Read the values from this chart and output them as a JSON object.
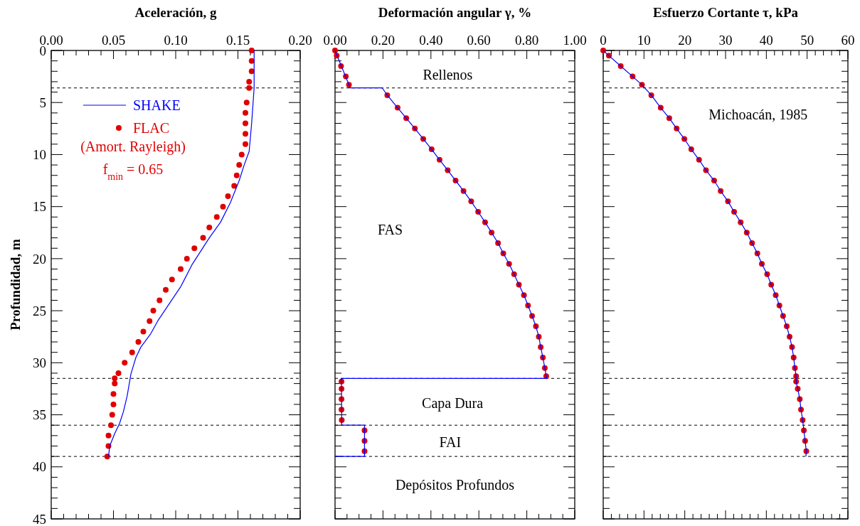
{
  "chart_data": [
    {
      "type": "line",
      "xlabel": "Aceleración, g",
      "ylabel": "Profundidad, m",
      "xlim": [
        0,
        0.2
      ],
      "ylim": [
        45,
        0
      ],
      "legend": "top left",
      "xticks": [
        {
          "value": 0,
          "label": "0.00"
        },
        {
          "value": 0.01,
          "label": null
        },
        {
          "value": 0.02,
          "label": null
        },
        {
          "value": 0.03,
          "label": null
        },
        {
          "value": 0.04,
          "label": null
        },
        {
          "value": 0.05,
          "label": "0.05"
        },
        {
          "value": 0.06,
          "label": null
        },
        {
          "value": 0.07,
          "label": null
        },
        {
          "value": 0.08,
          "label": null
        },
        {
          "value": 0.09,
          "label": null
        },
        {
          "value": 0.1,
          "label": "0.10"
        },
        {
          "value": 0.11,
          "label": null
        },
        {
          "value": 0.12,
          "label": null
        },
        {
          "value": 0.13,
          "label": null
        },
        {
          "value": 0.14,
          "label": null
        },
        {
          "value": 0.15,
          "label": "0.15"
        },
        {
          "value": 0.16,
          "label": null
        },
        {
          "value": 0.17,
          "label": null
        },
        {
          "value": 0.18,
          "label": null
        },
        {
          "value": 0.19,
          "label": null
        },
        {
          "value": 0.2,
          "label": "0.20"
        }
      ],
      "yticks": [
        0,
        {
          "value": 1,
          "label": null
        },
        {
          "value": 2,
          "label": null
        },
        {
          "value": 3,
          "label": null
        },
        {
          "value": 4,
          "label": null
        },
        5,
        {
          "value": 6,
          "label": null
        },
        {
          "value": 7,
          "label": null
        },
        {
          "value": 8,
          "label": null
        },
        {
          "value": 9,
          "label": null
        },
        10,
        {
          "value": 11,
          "label": null
        },
        {
          "value": 12,
          "label": null
        },
        {
          "value": 13,
          "label": null
        },
        {
          "value": 14,
          "label": null
        },
        15,
        {
          "value": 16,
          "label": null
        },
        {
          "value": 17,
          "label": null
        },
        {
          "value": 18,
          "label": null
        },
        {
          "value": 19,
          "label": null
        },
        20,
        {
          "value": 21,
          "label": null
        },
        {
          "value": 22,
          "label": null
        },
        {
          "value": 23,
          "label": null
        },
        {
          "value": 24,
          "label": null
        },
        25,
        {
          "value": 26,
          "label": null
        },
        {
          "value": 27,
          "label": null
        },
        {
          "value": 28,
          "label": null
        },
        {
          "value": 29,
          "label": null
        },
        30,
        {
          "value": 31,
          "label": null
        },
        {
          "value": 32,
          "label": null
        },
        {
          "value": 33,
          "label": null
        },
        {
          "value": 34,
          "label": null
        },
        35,
        {
          "value": 36,
          "label": null
        },
        {
          "value": 37,
          "label": null
        },
        {
          "value": 38,
          "label": null
        },
        {
          "value": 39,
          "label": null
        },
        40,
        {
          "value": 41,
          "label": null
        },
        {
          "value": 42,
          "label": null
        },
        {
          "value": 43,
          "label": null
        },
        {
          "value": 44,
          "label": null
        },
        45
      ],
      "ref_lines": [
        {
          "axis": "y",
          "value": 3.6,
          "color": "#000000",
          "line_style": "dashed"
        },
        {
          "axis": "y",
          "value": 31.5,
          "color": "#000000",
          "line_style": "dashed"
        },
        {
          "axis": "y",
          "value": 36,
          "color": "#000000",
          "line_style": "dashed"
        },
        {
          "axis": "y",
          "value": 39,
          "color": "#000000",
          "line_style": "dashed"
        }
      ],
      "annotations": [
        "(Amort. Rayleigh)",
        "f$_{min}$ = 0.65"
      ],
      "series": [
        {
          "name": "SHAKE",
          "type": "line",
          "color": "#0000ff",
          "x": [
            0.163,
            0.163,
            0.161,
            0.159,
            0.155,
            0.151,
            0.144,
            0.136,
            0.127,
            0.113,
            0.104,
            0.095,
            0.086,
            0.08,
            0.072,
            0.068,
            0.064,
            0.061,
            0.058,
            0.055,
            0.051,
            0.047,
            0.046
          ],
          "values": [
            0,
            3.6,
            7.0,
            9.7,
            11.0,
            12.5,
            14.6,
            16.5,
            18.0,
            20.6,
            22.7,
            24.3,
            25.9,
            27.2,
            28.5,
            29.5,
            31.1,
            33.2,
            34.7,
            35.8,
            36.8,
            38.0,
            39.0
          ]
        },
        {
          "name": "FLAC",
          "type": "scatter",
          "marker": "circle",
          "color": "#e00000",
          "x": [
            0.161,
            0.161,
            0.161,
            0.159,
            0.159,
            0.157,
            0.156,
            0.156,
            0.156,
            0.156,
            0.153,
            0.151,
            0.149,
            0.147,
            0.142,
            0.138,
            0.133,
            0.127,
            0.122,
            0.115,
            0.109,
            0.104,
            0.097,
            0.092,
            0.087,
            0.082,
            0.079,
            0.074,
            0.07,
            0.065,
            0.059,
            0.054,
            0.051,
            0.051,
            0.05,
            0.05,
            0.049,
            0.048,
            0.046,
            0.046,
            0.045
          ],
          "values": [
            0,
            1,
            2,
            3,
            3.6,
            5,
            6,
            7,
            8,
            9,
            10,
            11,
            12,
            13,
            14,
            15,
            16,
            17,
            18,
            19,
            20,
            21,
            22,
            23,
            24,
            25,
            26,
            27,
            28,
            29,
            30,
            31,
            31.5,
            32,
            33,
            34,
            35,
            36,
            37,
            38,
            39
          ]
        }
      ]
    },
    {
      "type": "line",
      "xlabel": "Deformación angular γ, %",
      "xlim": [
        0,
        1
      ],
      "ylim": [
        45,
        0
      ],
      "tick_labels": "x",
      "xticks": [
        {
          "value": 0,
          "label": "0.00"
        },
        {
          "value": 0.05,
          "label": null
        },
        {
          "value": 0.1,
          "label": null
        },
        {
          "value": 0.15,
          "label": null
        },
        {
          "value": 0.2,
          "label": "0.20"
        },
        {
          "value": 0.25,
          "label": null
        },
        {
          "value": 0.3,
          "label": null
        },
        {
          "value": 0.35,
          "label": null
        },
        {
          "value": 0.4,
          "label": "0.40"
        },
        {
          "value": 0.45,
          "label": null
        },
        {
          "value": 0.5,
          "label": null
        },
        {
          "value": 0.55,
          "label": null
        },
        {
          "value": 0.6,
          "label": "0.60"
        },
        {
          "value": 0.65,
          "label": null
        },
        {
          "value": 0.7,
          "label": null
        },
        {
          "value": 0.75,
          "label": null
        },
        {
          "value": 0.8,
          "label": "0.80"
        },
        {
          "value": 0.85,
          "label": null
        },
        {
          "value": 0.9,
          "label": null
        },
        {
          "value": 0.95,
          "label": null
        },
        {
          "value": 1,
          "label": "1.00"
        }
      ],
      "yticks": [
        0,
        {
          "value": 1,
          "label": null
        },
        {
          "value": 2,
          "label": null
        },
        {
          "value": 3,
          "label": null
        },
        {
          "value": 4,
          "label": null
        },
        5,
        {
          "value": 6,
          "label": null
        },
        {
          "value": 7,
          "label": null
        },
        {
          "value": 8,
          "label": null
        },
        {
          "value": 9,
          "label": null
        },
        10,
        {
          "value": 11,
          "label": null
        },
        {
          "value": 12,
          "label": null
        },
        {
          "value": 13,
          "label": null
        },
        {
          "value": 14,
          "label": null
        },
        15,
        {
          "value": 16,
          "label": null
        },
        {
          "value": 17,
          "label": null
        },
        {
          "value": 18,
          "label": null
        },
        {
          "value": 19,
          "label": null
        },
        20,
        {
          "value": 21,
          "label": null
        },
        {
          "value": 22,
          "label": null
        },
        {
          "value": 23,
          "label": null
        },
        {
          "value": 24,
          "label": null
        },
        25,
        {
          "value": 26,
          "label": null
        },
        {
          "value": 27,
          "label": null
        },
        {
          "value": 28,
          "label": null
        },
        {
          "value": 29,
          "label": null
        },
        30,
        {
          "value": 31,
          "label": null
        },
        {
          "value": 32,
          "label": null
        },
        {
          "value": 33,
          "label": null
        },
        {
          "value": 34,
          "label": null
        },
        35,
        {
          "value": 36,
          "label": null
        },
        {
          "value": 37,
          "label": null
        },
        {
          "value": 38,
          "label": null
        },
        {
          "value": 39,
          "label": null
        },
        40,
        {
          "value": 41,
          "label": null
        },
        {
          "value": 42,
          "label": null
        },
        {
          "value": 43,
          "label": null
        },
        {
          "value": 44,
          "label": null
        },
        45
      ],
      "ref_lines": [
        {
          "axis": "y",
          "value": 3.6,
          "color": "#000000",
          "line_style": "dashed"
        },
        {
          "axis": "y",
          "value": 31.5,
          "color": "#000000",
          "line_style": "dashed"
        },
        {
          "axis": "y",
          "value": 36,
          "color": "#000000",
          "line_style": "dashed"
        },
        {
          "axis": "y",
          "value": 39,
          "color": "#000000",
          "line_style": "dashed"
        }
      ],
      "annotations": [
        "Rellenos",
        "FAS",
        "Capa Dura",
        "FAI",
        "Depósitos Profundos"
      ],
      "series": [
        {
          "type": "line",
          "color": "#0000ff",
          "x": [
            0,
            0.058,
            0.062,
            0.197,
            0.218,
            0.261,
            0.297,
            0.333,
            0.368,
            0.403,
            0.436,
            0.47,
            0.503,
            0.536,
            0.568,
            0.597,
            0.626,
            0.653,
            0.68,
            0.702,
            0.726,
            0.747,
            0.767,
            0.788,
            0.805,
            0.822,
            0.838,
            0.85,
            0.858,
            0.867,
            0.875,
            0.881,
            0.883,
            0.026,
            0.027,
            0.028,
            0.123,
            0.123,
            0
          ],
          "values": [
            0,
            3.3,
            3.6,
            3.6,
            4.3,
            5.5,
            6.5,
            7.5,
            8.5,
            9.5,
            10.5,
            11.5,
            12.5,
            13.5,
            14.5,
            15.5,
            16.5,
            17.5,
            18.5,
            19.5,
            20.5,
            21.5,
            22.5,
            23.5,
            24.5,
            25.5,
            26.5,
            27.5,
            28.5,
            29.5,
            30.5,
            31.3,
            31.5,
            31.5,
            32,
            36,
            36,
            39,
            39
          ]
        },
        {
          "type": "scatter",
          "marker": "circle",
          "color": "#e00000",
          "x": [
            0,
            0.007,
            0.025,
            0.045,
            0.058,
            0.218,
            0.261,
            0.297,
            0.333,
            0.368,
            0.403,
            0.436,
            0.47,
            0.503,
            0.536,
            0.568,
            0.597,
            0.626,
            0.653,
            0.68,
            0.702,
            0.726,
            0.747,
            0.767,
            0.788,
            0.805,
            0.822,
            0.838,
            0.85,
            0.858,
            0.867,
            0.875,
            0.881,
            0.027,
            0.027,
            0.027,
            0.027,
            0.028,
            0.123,
            0.123,
            0.123
          ],
          "values": [
            0,
            0.5,
            1.5,
            2.5,
            3.3,
            4.3,
            5.5,
            6.5,
            7.5,
            8.5,
            9.5,
            10.5,
            11.5,
            12.5,
            13.5,
            14.5,
            15.5,
            16.5,
            17.5,
            18.5,
            19.5,
            20.5,
            21.5,
            22.5,
            23.5,
            24.5,
            25.5,
            26.5,
            27.5,
            28.5,
            29.5,
            30.5,
            31.3,
            31.8,
            32.5,
            33.5,
            34.5,
            35.5,
            36.5,
            37.5,
            38.5
          ]
        }
      ]
    },
    {
      "type": "line",
      "xlabel": "Esfuerzo Cortante τ, kPa",
      "xlim": [
        0,
        60
      ],
      "ylim": [
        45,
        0
      ],
      "tick_labels": "x",
      "xticks": [
        0,
        {
          "value": 2,
          "label": null
        },
        {
          "value": 4,
          "label": null
        },
        {
          "value": 6,
          "label": null
        },
        {
          "value": 8,
          "label": null
        },
        10,
        {
          "value": 12,
          "label": null
        },
        {
          "value": 14,
          "label": null
        },
        {
          "value": 16,
          "label": null
        },
        {
          "value": 18,
          "label": null
        },
        20,
        {
          "value": 22,
          "label": null
        },
        {
          "value": 24,
          "label": null
        },
        {
          "value": 26,
          "label": null
        },
        {
          "value": 28,
          "label": null
        },
        30,
        {
          "value": 32,
          "label": null
        },
        {
          "value": 34,
          "label": null
        },
        {
          "value": 36,
          "label": null
        },
        {
          "value": 38,
          "label": null
        },
        40,
        {
          "value": 42,
          "label": null
        },
        {
          "value": 44,
          "label": null
        },
        {
          "value": 46,
          "label": null
        },
        {
          "value": 48,
          "label": null
        },
        50,
        {
          "value": 52,
          "label": null
        },
        {
          "value": 54,
          "label": null
        },
        {
          "value": 56,
          "label": null
        },
        {
          "value": 58,
          "label": null
        },
        60
      ],
      "yticks": [
        0,
        {
          "value": 1,
          "label": null
        },
        {
          "value": 2,
          "label": null
        },
        {
          "value": 3,
          "label": null
        },
        {
          "value": 4,
          "label": null
        },
        5,
        {
          "value": 6,
          "label": null
        },
        {
          "value": 7,
          "label": null
        },
        {
          "value": 8,
          "label": null
        },
        {
          "value": 9,
          "label": null
        },
        10,
        {
          "value": 11,
          "label": null
        },
        {
          "value": 12,
          "label": null
        },
        {
          "value": 13,
          "label": null
        },
        {
          "value": 14,
          "label": null
        },
        15,
        {
          "value": 16,
          "label": null
        },
        {
          "value": 17,
          "label": null
        },
        {
          "value": 18,
          "label": null
        },
        {
          "value": 19,
          "label": null
        },
        20,
        {
          "value": 21,
          "label": null
        },
        {
          "value": 22,
          "label": null
        },
        {
          "value": 23,
          "label": null
        },
        {
          "value": 24,
          "label": null
        },
        25,
        {
          "value": 26,
          "label": null
        },
        {
          "value": 27,
          "label": null
        },
        {
          "value": 28,
          "label": null
        },
        {
          "value": 29,
          "label": null
        },
        30,
        {
          "value": 31,
          "label": null
        },
        {
          "value": 32,
          "label": null
        },
        {
          "value": 33,
          "label": null
        },
        {
          "value": 34,
          "label": null
        },
        35,
        {
          "value": 36,
          "label": null
        },
        {
          "value": 37,
          "label": null
        },
        {
          "value": 38,
          "label": null
        },
        {
          "value": 39,
          "label": null
        },
        40,
        {
          "value": 41,
          "label": null
        },
        {
          "value": 42,
          "label": null
        },
        {
          "value": 43,
          "label": null
        },
        {
          "value": 44,
          "label": null
        },
        45
      ],
      "ref_lines": [
        {
          "axis": "y",
          "value": 3.6,
          "color": "#000000",
          "line_style": "dashed"
        },
        {
          "axis": "y",
          "value": 31.5,
          "color": "#000000",
          "line_style": "dashed"
        },
        {
          "axis": "y",
          "value": 36,
          "color": "#000000",
          "line_style": "dashed"
        },
        {
          "axis": "y",
          "value": 39,
          "color": "#000000",
          "line_style": "dashed"
        }
      ],
      "annotations": [
        "Michoacán, 1985"
      ],
      "series": [
        {
          "type": "line",
          "color": "#0000ff",
          "x": [
            0,
            1.4,
            4.3,
            7.2,
            9.5,
            11.8,
            14.1,
            16.2,
            18.0,
            19.9,
            21.6,
            23.5,
            25.2,
            27.2,
            28.8,
            30.6,
            32.1,
            33.7,
            35.2,
            36.5,
            37.8,
            38.9,
            40.2,
            41.2,
            42.3,
            43.2,
            44.1,
            45.0,
            45.7,
            46.3,
            46.7,
            47.0,
            47.3,
            47.3,
            47.7,
            48.2,
            48.5,
            48.9,
            49.2,
            49.5,
            49.8,
            49.7
          ],
          "values": [
            0,
            0.5,
            1.5,
            2.5,
            3.3,
            4.3,
            5.5,
            6.5,
            7.5,
            8.5,
            9.5,
            10.5,
            11.5,
            12.5,
            13.5,
            14.5,
            15.5,
            16.5,
            17.5,
            18.5,
            19.5,
            20.5,
            21.5,
            22.5,
            23.5,
            24.5,
            25.5,
            26.5,
            27.5,
            28.5,
            29.5,
            30.5,
            31.3,
            31.8,
            32.5,
            33.5,
            34.5,
            35.5,
            36.5,
            37.5,
            38.5,
            39
          ]
        },
        {
          "type": "scatter",
          "marker": "circle",
          "color": "#e00000",
          "x": [
            0,
            1.4,
            4.3,
            7.2,
            9.5,
            11.8,
            14.1,
            16.2,
            18.0,
            19.9,
            21.6,
            23.5,
            25.2,
            27.2,
            28.8,
            30.6,
            32.1,
            33.7,
            35.2,
            36.5,
            37.8,
            38.9,
            40.2,
            41.2,
            42.3,
            43.2,
            44.1,
            45.0,
            45.7,
            46.3,
            46.7,
            47.0,
            47.3,
            47.3,
            47.7,
            48.2,
            48.5,
            48.9,
            49.2,
            49.5,
            49.8
          ],
          "values": [
            0,
            0.5,
            1.5,
            2.5,
            3.3,
            4.3,
            5.5,
            6.5,
            7.5,
            8.5,
            9.5,
            10.5,
            11.5,
            12.5,
            13.5,
            14.5,
            15.5,
            16.5,
            17.5,
            18.5,
            19.5,
            20.5,
            21.5,
            22.5,
            23.5,
            24.5,
            25.5,
            26.5,
            27.5,
            28.5,
            29.5,
            30.5,
            31.3,
            31.8,
            32.5,
            33.5,
            34.5,
            35.5,
            36.5,
            37.5,
            38.5
          ]
        }
      ]
    }
  ]
}
